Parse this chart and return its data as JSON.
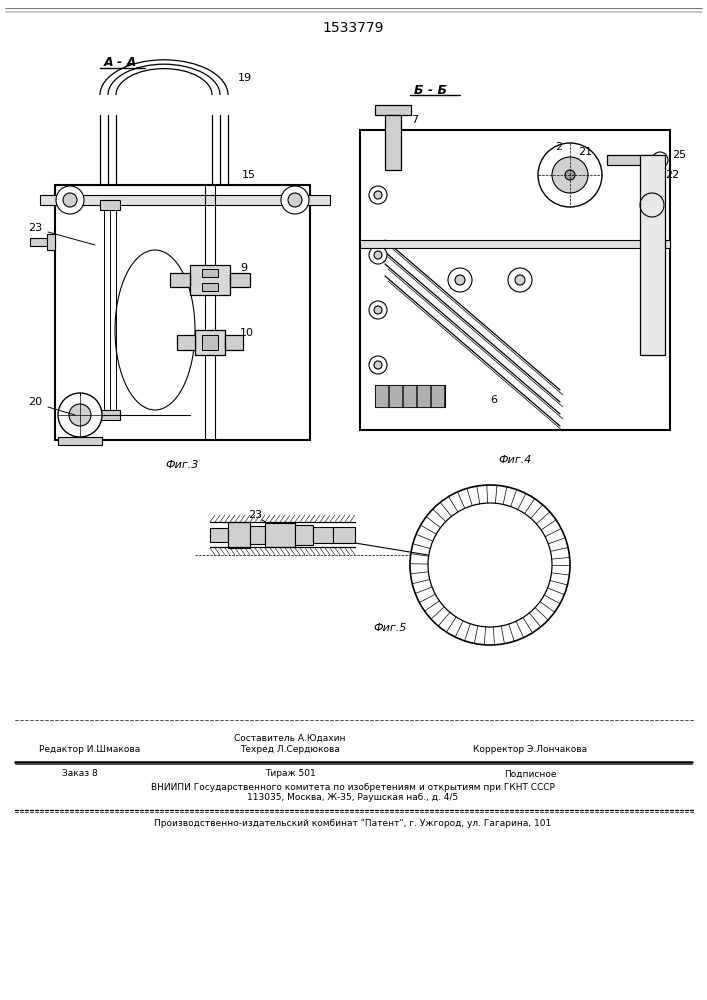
{
  "patent_number": "1533779",
  "fig3_label": "Фиг.3",
  "fig4_label": "Фиг.4",
  "fig5_label": "Фиг.5",
  "footer_line1_mid_top": "Составитель А.Юдахин",
  "footer_line1_left": "Редактор И.Шмакова",
  "footer_line1_mid": "Техред Л.Сердюкова",
  "footer_line1_right": "Корректор Э.Лончакова",
  "footer_line2_left": "Заказ 8",
  "footer_line2_mid": "Тираж 501",
  "footer_line2_right": "Подписное",
  "footer_line3": "ВНИИПИ Государственного комитета по изобретениям и открытиям при ГКНТ СССР",
  "footer_line4": "113035, Москва, Ж-35, Раушская наб., д. 4/5",
  "footer_line5": "Производственно-издательский комбинат \"Патент\", г. Ужгород, ул. Гагарина, 101",
  "bg_color": "#ffffff"
}
